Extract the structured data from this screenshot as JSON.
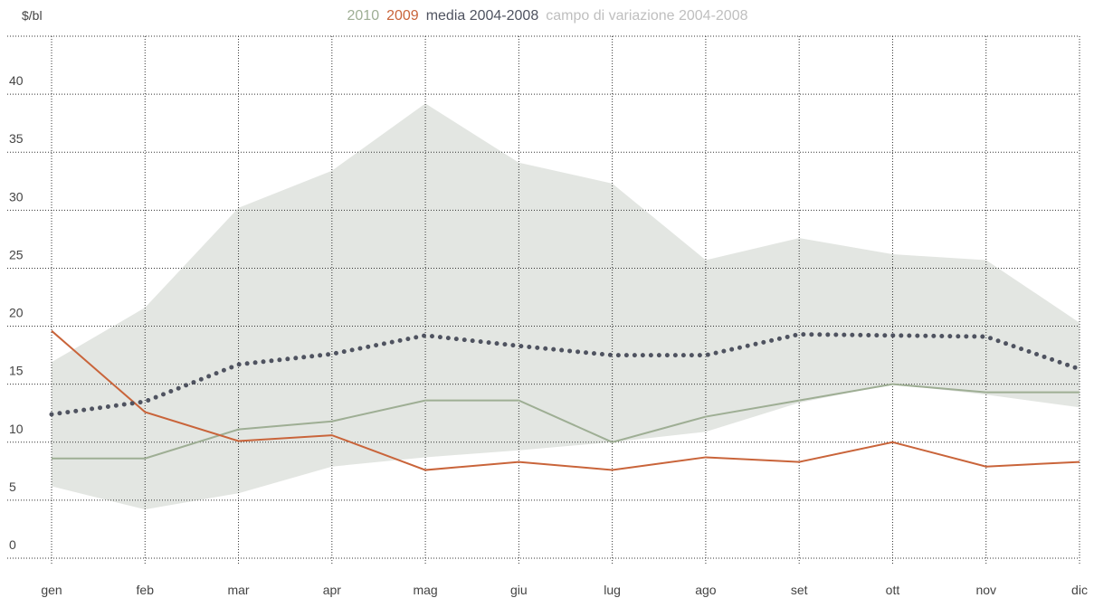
{
  "chart_data": {
    "type": "line",
    "y_label": "$/bl",
    "categories": [
      "gen",
      "feb",
      "mar",
      "apr",
      "mag",
      "giu",
      "lug",
      "ago",
      "set",
      "ott",
      "nov",
      "dic"
    ],
    "ylim": [
      0,
      45
    ],
    "yticks": [
      0,
      5,
      10,
      15,
      20,
      25,
      30,
      35,
      40
    ],
    "grid": true,
    "legend": "top",
    "series": [
      {
        "name": "2010",
        "color": "#9eae94",
        "style": "solid",
        "values": [
          8.6,
          8.6,
          11.1,
          11.8,
          13.6,
          13.6,
          10,
          12.2,
          13.6,
          15,
          14.3,
          14.3
        ]
      },
      {
        "name": "2009",
        "color": "#c9643a",
        "style": "solid",
        "values": [
          19.6,
          12.6,
          10.1,
          10.6,
          7.6,
          8.3,
          7.6,
          8.7,
          8.3,
          10,
          7.9,
          8.3
        ]
      },
      {
        "name": "media 2004-2008",
        "color": "#4f5360",
        "style": "dotted",
        "values": [
          12.4,
          13.5,
          16.7,
          17.6,
          19.2,
          18.3,
          17.5,
          17.5,
          19.3,
          19.2,
          19.1,
          16.3
        ]
      },
      {
        "name": "campo di variazione 2004-2008",
        "color": "#bfbfbf",
        "style": "band",
        "fill": "#e3e6e2",
        "high": [
          16.9,
          21.6,
          30.2,
          33.4,
          39.2,
          34.1,
          32.3,
          25.7,
          27.6,
          26.2,
          25.7,
          20.3
        ],
        "low": [
          6.2,
          4.2,
          5.6,
          7.9,
          8.7,
          9.3,
          10,
          10.9,
          13.4,
          15,
          14.1,
          13
        ]
      }
    ]
  }
}
